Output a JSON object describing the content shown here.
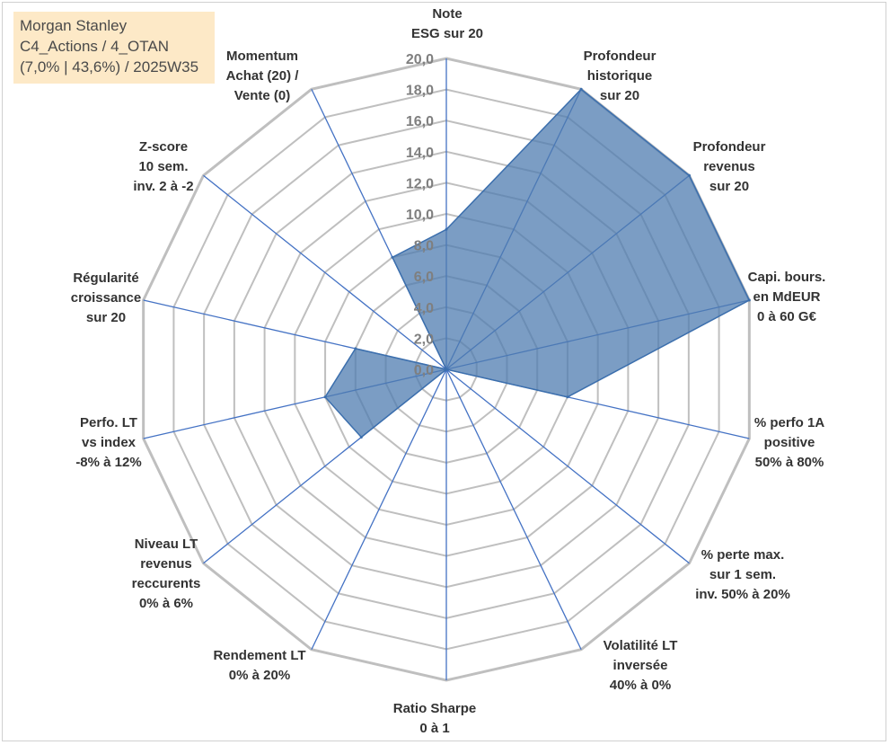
{
  "info": {
    "company": "Morgan Stanley",
    "category": "C4_Actions / 4_OTAN",
    "stats": "(7,0% | 43,6%) / 2025W35"
  },
  "colors": {
    "fill": "#4f7cb0",
    "series_line": "#3c6fad",
    "grid": "#bfbfbf",
    "spoke": "#4472c4",
    "info_box": "#fde9c7"
  },
  "chart_data": {
    "type": "radar",
    "rmin": 0,
    "rmax": 20,
    "tick_step": 2,
    "tick_labels": [
      "0,0",
      "2,0",
      "4,0",
      "6,0",
      "8,0",
      "10,0",
      "12,0",
      "14,0",
      "16,0",
      "18,0",
      "20,0"
    ],
    "categories": [
      [
        "Note",
        "ESG sur 20"
      ],
      [
        "Profondeur",
        "historique",
        "sur 20"
      ],
      [
        "Profondeur",
        "revenus",
        "sur 20"
      ],
      [
        "Capi. bours.",
        "en MdEUR",
        "0 à 60 G€"
      ],
      [
        "% perfo 1A",
        "positive",
        "50% à 80%"
      ],
      [
        "% perte max.",
        "sur 1 sem.",
        "inv. 50% à 20%"
      ],
      [
        "Volatilité LT",
        "inversée",
        "40% à 0%"
      ],
      [
        "Ratio Sharpe",
        "0 à 1"
      ],
      [
        "Rendement LT",
        "0% à 20%"
      ],
      [
        "Niveau LT",
        "revenus",
        "reccurents",
        "0% à 6%"
      ],
      [
        "Perfo. LT",
        "vs index",
        "-8% à 12%"
      ],
      [
        "Régularité",
        "croissance",
        "sur 20"
      ],
      [
        "Z-score",
        "10 sem.",
        "inv. 2 à -2"
      ],
      [
        "Momentum",
        "Achat (20) /",
        "Vente (0)"
      ]
    ],
    "values": [
      9.0,
      20.0,
      20.0,
      20.0,
      8.0,
      0.0,
      0.0,
      0.0,
      0.0,
      7.0,
      8.0,
      6.0,
      0.0,
      8.0
    ],
    "grid": true
  }
}
